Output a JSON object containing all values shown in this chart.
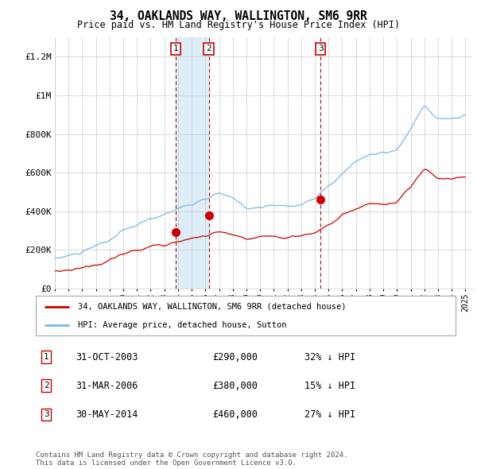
{
  "title": "34, OAKLANDS WAY, WALLINGTON, SM6 9RR",
  "subtitle": "Price paid vs. HM Land Registry's House Price Index (HPI)",
  "legend_text": [
    "34, OAKLANDS WAY, WALLINGTON, SM6 9RR (detached house)",
    "HPI: Average price, detached house, Sutton"
  ],
  "transactions": [
    {
      "num": 1,
      "date": "31-OCT-2003",
      "price": 290000,
      "rel": "32% ↓ HPI",
      "year_x": 2003.833
    },
    {
      "num": 2,
      "date": "31-MAR-2006",
      "price": 380000,
      "rel": "15% ↓ HPI",
      "year_x": 2006.25
    },
    {
      "num": 3,
      "date": "30-MAY-2014",
      "price": 460000,
      "rel": "27% ↓ HPI",
      "year_x": 2014.417
    }
  ],
  "hpi_color": "#7ab8e0",
  "price_color": "#cc0000",
  "vline_color": "#cc0000",
  "shade_color": "#ddeef8",
  "background_color": "#ffffff",
  "grid_color": "#cccccc",
  "ylim": [
    0,
    1300000
  ],
  "xlim_start": 1995.0,
  "xlim_end": 2025.5,
  "footnote": "Contains HM Land Registry data © Crown copyright and database right 2024.\nThis data is licensed under the Open Government Licence v3.0."
}
